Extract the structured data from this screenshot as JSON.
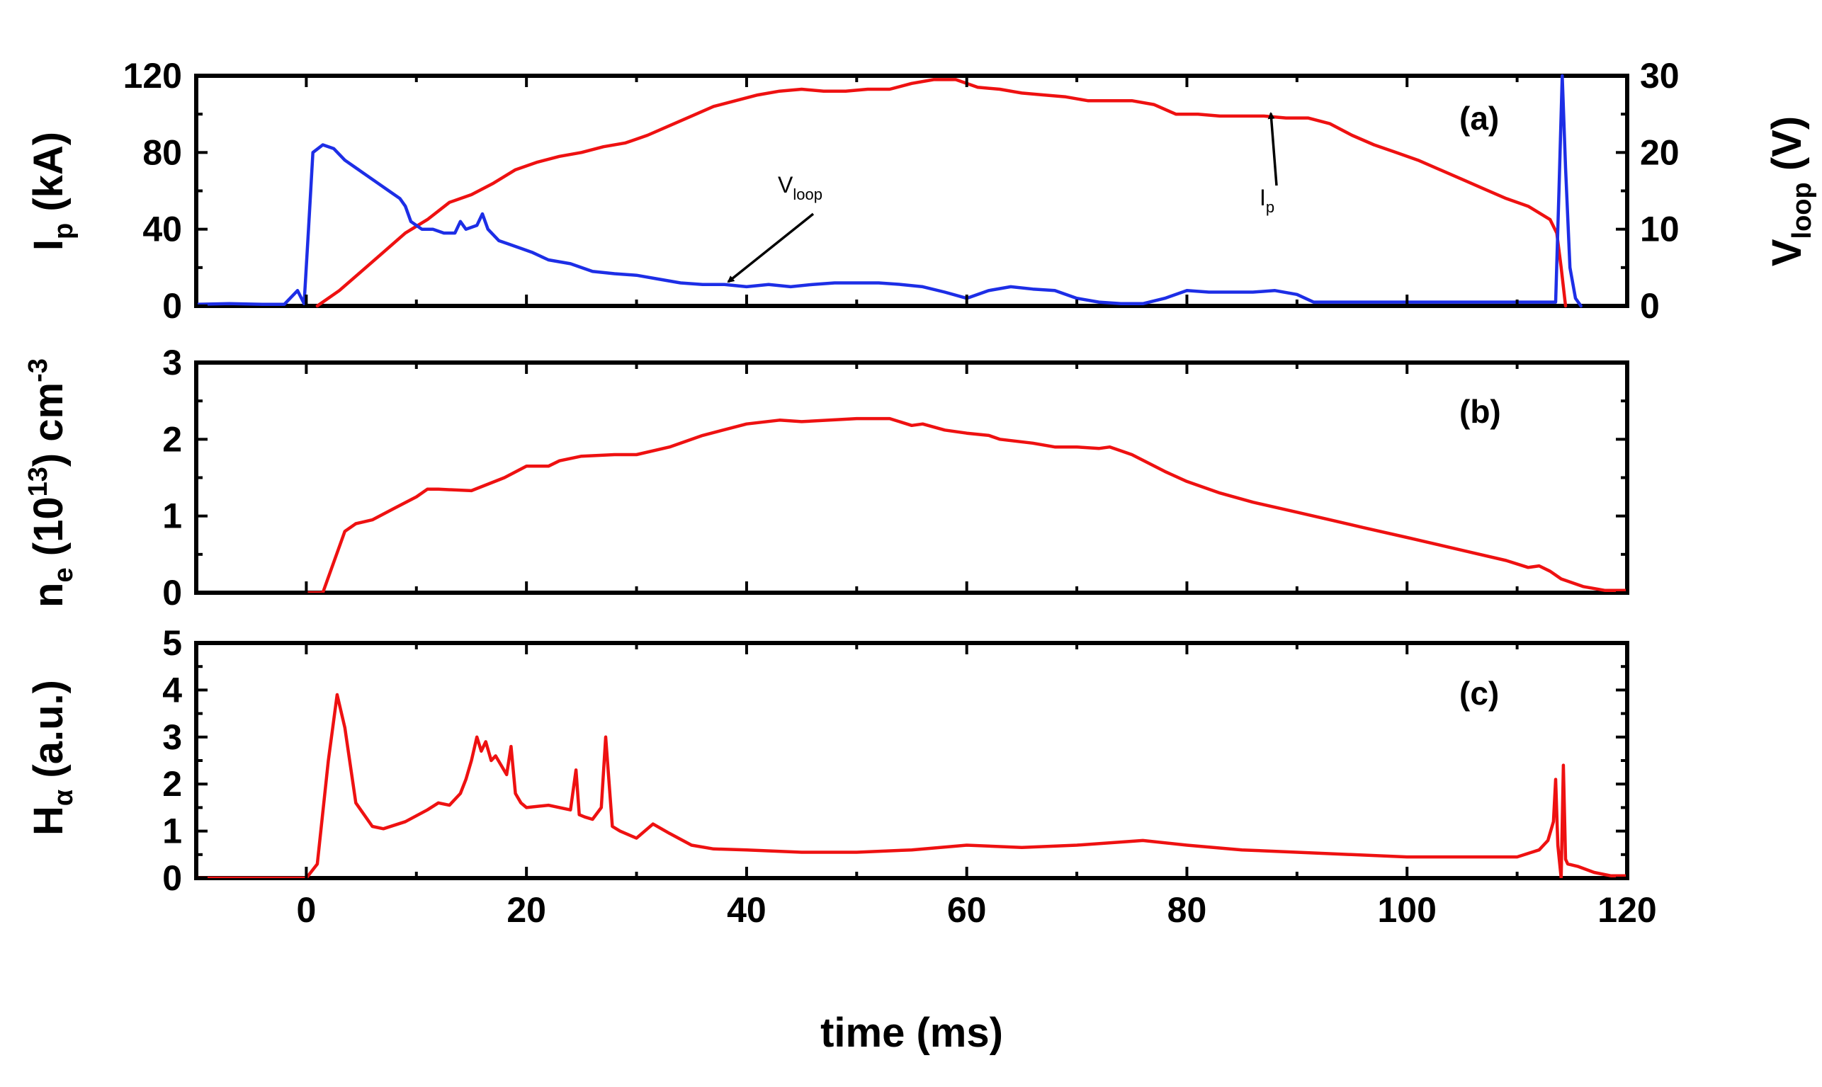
{
  "figure": {
    "xlabel": "time (ms)",
    "xlim": [
      -10,
      120
    ],
    "xticks": [
      0,
      20,
      40,
      60,
      80,
      100,
      120
    ],
    "colors": {
      "red": "#ee1111",
      "blue": "#1d2ee6"
    }
  },
  "chart_data": [
    {
      "type": "line",
      "panel": "(a)",
      "ylabel_left": {
        "main": "I",
        "sub": "p",
        "unit": " (kA)"
      },
      "ylabel_right": {
        "main": "V",
        "sub": "loop",
        "unit": " (V)"
      },
      "ylim_left": [
        0,
        120
      ],
      "yticks_left": [
        0,
        40,
        80,
        120
      ],
      "ylim_right": [
        0,
        30
      ],
      "yticks_right": [
        0,
        10,
        20,
        30
      ],
      "annotations": [
        {
          "label_main": "V",
          "label_sub": "loop",
          "series": "Vloop",
          "at_x": 38.5,
          "at_y": 3
        },
        {
          "label_main": "I",
          "label_sub": "p",
          "series": "Ip",
          "at_x": 87.5,
          "at_y": 99
        }
      ],
      "series": [
        {
          "name": "Ip",
          "color": "#ee1111",
          "axis": "left",
          "x": [
            1,
            3,
            5,
            7,
            9,
            11,
            13,
            15,
            17,
            19,
            21,
            23,
            25,
            27,
            29,
            31,
            33,
            35,
            37,
            39,
            41,
            43,
            45,
            47,
            49,
            51,
            53,
            55,
            57,
            59,
            61,
            63,
            65,
            67,
            69,
            71,
            73,
            75,
            77,
            79,
            81,
            83,
            85,
            87,
            89,
            91,
            93,
            95,
            97,
            99,
            101,
            103,
            105,
            107,
            109,
            111,
            113,
            113.6,
            114.0,
            114.4
          ],
          "y": [
            0,
            8,
            18,
            28,
            38,
            45,
            54,
            58,
            64,
            71,
            75,
            78,
            80,
            83,
            85,
            89,
            94,
            99,
            104,
            107,
            110,
            112,
            113,
            112,
            112,
            113,
            113,
            116,
            118,
            118,
            114,
            113,
            111,
            110,
            109,
            107,
            107,
            107,
            105,
            100,
            100,
            99,
            99,
            99,
            98,
            98,
            95,
            89,
            84,
            80,
            76,
            71,
            66,
            61,
            56,
            52,
            45,
            38,
            20,
            0
          ]
        },
        {
          "name": "Vloop",
          "color": "#1d2ee6",
          "axis": "right",
          "x": [
            -10,
            -7,
            -4,
            -2,
            -0.8,
            -0.2,
            0.2,
            0.6,
            1.5,
            2.5,
            3.5,
            4.5,
            5.5,
            6.5,
            7.5,
            8.5,
            9.0,
            9.5,
            10.5,
            11.5,
            12.5,
            13.5,
            14.0,
            14.5,
            15.5,
            16.0,
            16.5,
            17.5,
            18.5,
            19.5,
            20.5,
            22,
            24,
            26,
            28,
            30,
            32,
            34,
            36,
            38,
            40,
            42,
            44,
            46,
            48,
            50,
            52,
            54,
            56,
            58,
            60,
            62,
            64,
            66,
            68,
            70,
            72,
            74,
            76,
            78,
            80,
            82,
            84,
            86,
            88,
            90,
            91.5,
            113.5,
            113.8,
            114.1,
            114.4,
            114.8,
            115.3,
            115.8
          ],
          "y": [
            0.2,
            0.3,
            0.2,
            0.2,
            2.0,
            0.3,
            10,
            20,
            21,
            20.5,
            19,
            18,
            17,
            16,
            15,
            14,
            13,
            11,
            10,
            10,
            9.5,
            9.5,
            11,
            10,
            10.5,
            12,
            10,
            8.5,
            8.0,
            7.5,
            7.0,
            6.0,
            5.5,
            4.5,
            4.2,
            4.0,
            3.5,
            3.0,
            2.8,
            2.8,
            2.5,
            2.8,
            2.5,
            2.8,
            3.0,
            3.0,
            3.0,
            2.8,
            2.5,
            1.8,
            1.0,
            2.0,
            2.5,
            2.2,
            2.0,
            1.0,
            0.5,
            0.3,
            0.3,
            1.0,
            2.0,
            1.8,
            1.8,
            1.8,
            2.0,
            1.5,
            0.5,
            0.5,
            15,
            30,
            18,
            5,
            1.0,
            0.0
          ]
        }
      ]
    },
    {
      "type": "line",
      "panel": "(b)",
      "ylabel": {
        "main": "n",
        "sub": "e",
        "unit": " (10",
        "sup": "13",
        "unit2": ") cm",
        "sup2": "-3"
      },
      "ylim": [
        0,
        3
      ],
      "yticks": [
        0,
        1,
        2,
        3
      ],
      "series": [
        {
          "name": "ne",
          "color": "#ee1111",
          "x": [
            0,
            1.5,
            2.5,
            3.5,
            4.5,
            6,
            8,
            10,
            11,
            12,
            15,
            18,
            20,
            22,
            23,
            25,
            28,
            30,
            33,
            36,
            40,
            43,
            45,
            50,
            53,
            55,
            56,
            58,
            60,
            62,
            63,
            66,
            68,
            70,
            72,
            73,
            75,
            78,
            80,
            83,
            86,
            90,
            93,
            96,
            100,
            103,
            106,
            109,
            111,
            112,
            113,
            114,
            116,
            118,
            120
          ],
          "y": [
            0,
            0,
            0.4,
            0.8,
            0.9,
            0.95,
            1.1,
            1.25,
            1.35,
            1.35,
            1.33,
            1.5,
            1.65,
            1.65,
            1.72,
            1.78,
            1.8,
            1.8,
            1.9,
            2.05,
            2.2,
            2.25,
            2.23,
            2.27,
            2.27,
            2.18,
            2.2,
            2.12,
            2.08,
            2.05,
            2.0,
            1.95,
            1.9,
            1.9,
            1.88,
            1.9,
            1.8,
            1.58,
            1.45,
            1.3,
            1.18,
            1.05,
            0.95,
            0.85,
            0.72,
            0.62,
            0.52,
            0.42,
            0.33,
            0.35,
            0.28,
            0.18,
            0.08,
            0.03,
            0.03
          ]
        }
      ]
    },
    {
      "type": "line",
      "panel": "(c)",
      "ylabel": {
        "main": "H",
        "sub": "α",
        "unit": " (a.u.)"
      },
      "ylim": [
        0,
        5
      ],
      "yticks": [
        0,
        1,
        2,
        3,
        4,
        5
      ],
      "series": [
        {
          "name": "Halpha",
          "color": "#ee1111",
          "x": [
            -10,
            0,
            1,
            2,
            2.8,
            3.5,
            4.5,
            6,
            7,
            9,
            11,
            12,
            13,
            14,
            14.5,
            15,
            15.5,
            15.9,
            16.3,
            16.8,
            17.2,
            17.7,
            18.2,
            18.6,
            19.0,
            19.5,
            20,
            22,
            24,
            24.5,
            24.8,
            25.3,
            26,
            26.8,
            27.2,
            27.8,
            28.5,
            30,
            31.5,
            33,
            35,
            37,
            40,
            45,
            50,
            55,
            60,
            65,
            70,
            76,
            80,
            85,
            90,
            100,
            105,
            110,
            112,
            112.8,
            113.3,
            113.5,
            113.7,
            114.0,
            114.2,
            114.4,
            114.6,
            115.5,
            117,
            118.5,
            120
          ],
          "y": [
            0,
            0,
            0.3,
            2.5,
            3.9,
            3.2,
            1.6,
            1.1,
            1.05,
            1.2,
            1.45,
            1.6,
            1.55,
            1.8,
            2.1,
            2.5,
            3.0,
            2.7,
            2.9,
            2.5,
            2.6,
            2.4,
            2.2,
            2.8,
            1.8,
            1.6,
            1.5,
            1.55,
            1.45,
            2.3,
            1.35,
            1.3,
            1.25,
            1.5,
            3.0,
            1.1,
            1.0,
            0.85,
            1.15,
            0.95,
            0.7,
            0.62,
            0.6,
            0.55,
            0.55,
            0.6,
            0.7,
            0.65,
            0.7,
            0.8,
            0.7,
            0.6,
            0.55,
            0.45,
            0.45,
            0.45,
            0.6,
            0.8,
            1.2,
            2.1,
            0.7,
            0,
            2.4,
            0.4,
            0.3,
            0.25,
            0.12,
            0.05,
            0.05
          ]
        }
      ]
    }
  ]
}
